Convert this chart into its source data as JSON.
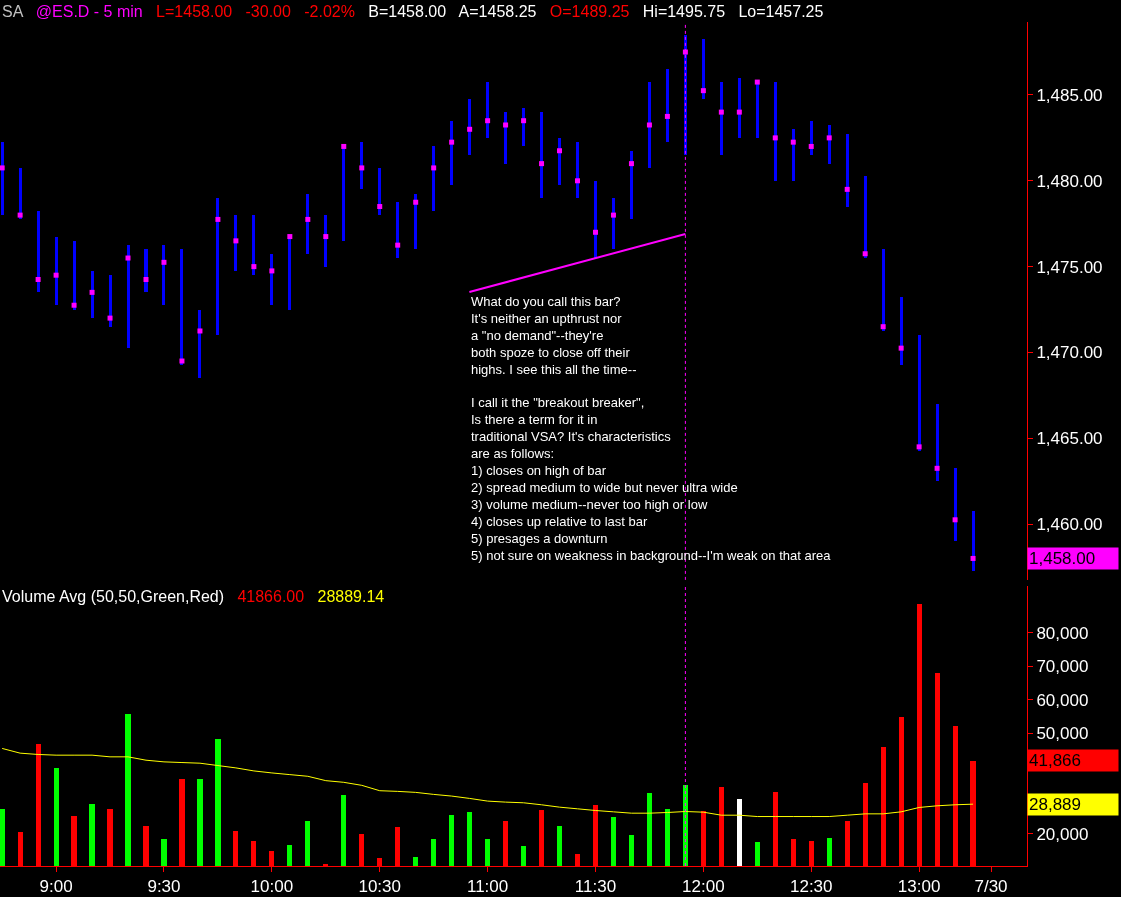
{
  "chart_data": [
    {
      "type": "bar",
      "title": "@ES.D - 5 min",
      "x": [
        8.75,
        8.8333,
        8.9167,
        9,
        9.0833,
        9.1667,
        9.25,
        9.3333,
        9.4167,
        9.5,
        9.5833,
        9.6667,
        9.75,
        9.8333,
        9.9167,
        10,
        10.0833,
        10.1667,
        10.25,
        10.3333,
        10.4167,
        10.5,
        10.5833,
        10.6667,
        10.75,
        10.8333,
        10.9167,
        11,
        11.0833,
        11.1667,
        11.25,
        11.3333,
        11.4167,
        11.5,
        11.5833,
        11.6667,
        11.75,
        11.8333,
        11.9167,
        12,
        12.0833,
        12.1667,
        12.25,
        12.3333,
        12.4167,
        12.5,
        12.5833,
        12.6667,
        12.75,
        12.8333,
        12.9167,
        13,
        13.0833,
        13.1667,
        13.25
      ],
      "series": [
        {
          "color": "#0000ff",
          "base": [
            1478,
            1477.75,
            1473.5,
            1472.75,
            1472.5,
            1472,
            1471.5,
            1470.25,
            1473.5,
            1472.75,
            1469.25,
            1468.5,
            1471,
            1474.75,
            1474.5,
            1472.75,
            1472.5,
            1475.75,
            1475,
            1476.5,
            1479.5,
            1478,
            1475.5,
            1476,
            1478.25,
            1479.75,
            1481.5,
            1482.5,
            1481,
            1482,
            1479,
            1479.75,
            1479,
            1475.5,
            1476,
            1477.75,
            1480.75,
            1482.25,
            1481.5,
            1484.75,
            1481.5,
            1482.5,
            1482.5,
            1480,
            1480,
            1481.5,
            1481,
            1478.5,
            1475.5,
            1471.25,
            1469.25,
            1464.25,
            1462.5,
            1459,
            1457.25
          ],
          "values": [
            4.25,
            3,
            4.75,
            4,
            4,
            2.75,
            3,
            6,
            2.5,
            3.5,
            6.75,
            4,
            8,
            3.25,
            3.5,
            3,
            4.25,
            3.5,
            3,
            5.5,
            2.75,
            2.75,
            3.25,
            3.25,
            3.75,
            3.75,
            3.25,
            3.25,
            3,
            2.25,
            5,
            2.75,
            3.25,
            4.5,
            3,
            4,
            5,
            4.25,
            7,
            3.5,
            4.25,
            3.5,
            3.25,
            5.75,
            3,
            2,
            2.25,
            4.25,
            4.75,
            4.75,
            4,
            6.75,
            4.5,
            4.25,
            3.5
          ]
        },
        {
          "type": "scatter",
          "color": "#ff00ff",
          "marker": "square",
          "values": [
            1480.75,
            1478,
            1474.25,
            1474.5,
            1472.75,
            1473.5,
            1472,
            1475.5,
            1474.25,
            1475.25,
            1469.5,
            1471.25,
            1477.75,
            1476.5,
            1475,
            1474.75,
            1476.75,
            1477.75,
            1476.75,
            1482,
            1480.75,
            1478.5,
            1476.25,
            1478.75,
            1480.75,
            1482.25,
            1483,
            1483.5,
            1483.25,
            1483.5,
            1481,
            1481.75,
            1480,
            1477,
            1478,
            1481,
            1483.25,
            1483.75,
            1487.5,
            1485.25,
            1484,
            1484,
            1485.75,
            1482.5,
            1482.25,
            1482,
            1482.5,
            1479.5,
            1475.75,
            1471.5,
            1470.25,
            1464.5,
            1463.25,
            1460.25,
            1458
          ]
        }
      ],
      "xlim": [
        8.74,
        13.5
      ],
      "ylim": [
        1456.75,
        1489.25
      ],
      "yticks": [
        {
          "value": 1460,
          "label": "1,460.00"
        },
        {
          "value": 1465,
          "label": "1,465.00"
        },
        {
          "value": 1470,
          "label": "1,470.00"
        },
        {
          "value": 1475,
          "label": "1,475.00"
        },
        {
          "value": 1480,
          "label": "1,480.00"
        },
        {
          "value": 1485,
          "label": "1,485.00"
        }
      ],
      "tick_labels": "y",
      "ref_lines": [
        {
          "axis": "x",
          "value": 11.9167,
          "color": "#ff00ff",
          "line_style": "dotted"
        }
      ],
      "annotations": [
        "SA",
        "L=1458.00",
        "-30.00",
        "-2.02%",
        "B=1458.00",
        "A=1458.25",
        "O=1489.25",
        "Hi=1495.75",
        "Lo=1457.25",
        "What do you call this bar?\nIt's neither an upthrust nor\na \"no demand\"--they're\nboth spoze to close off their\nhighs. I see this all the time--\n\nI call it the \"breakout breaker\",\nIs there a term for it in\ntraditional VSA? It's characteristics\nare as follows:\n1) closes on high of bar\n2) spread medium to wide but never ultra wide\n3) volume medium--never too high or low\n4) closes up relative to last bar\n5) presages a downturn\n5) not sure on weakness in background--I'm weak on that area",
        "1,458.00"
      ]
    },
    {
      "type": "bar",
      "title": "Volume Avg (50,50,Green,Red)",
      "x": [
        8.75,
        8.8333,
        8.9167,
        9,
        9.0833,
        9.1667,
        9.25,
        9.3333,
        9.4167,
        9.5,
        9.5833,
        9.6667,
        9.75,
        9.8333,
        9.9167,
        10,
        10.0833,
        10.1667,
        10.25,
        10.3333,
        10.4167,
        10.5,
        10.5833,
        10.6667,
        10.75,
        10.8333,
        10.9167,
        11,
        11.0833,
        11.1667,
        11.25,
        11.3333,
        11.4167,
        11.5,
        11.5833,
        11.6667,
        11.75,
        11.8333,
        11.9167,
        12,
        12.0833,
        12.1667,
        12.25,
        12.3333,
        12.4167,
        12.5,
        12.5833,
        12.6667,
        12.75,
        12.8333,
        12.9167,
        13,
        13.0833,
        13.1667,
        13.25
      ],
      "series": [
        {
          "colors": [
            "#00ff00",
            "#ff0000",
            "#ff0000",
            "#00ff00",
            "#ff0000",
            "#00ff00",
            "#ff0000",
            "#00ff00",
            "#ff0000",
            "#00ff00",
            "#ff0000",
            "#00ff00",
            "#00ff00",
            "#ff0000",
            "#ff0000",
            "#ff0000",
            "#00ff00",
            "#00ff00",
            "#ff0000",
            "#00ff00",
            "#ff0000",
            "#ff0000",
            "#ff0000",
            "#00ff00",
            "#00ff00",
            "#00ff00",
            "#00ff00",
            "#00ff00",
            "#ff0000",
            "#00ff00",
            "#ff0000",
            "#00ff00",
            "#ff0000",
            "#ff0000",
            "#00ff00",
            "#00ff00",
            "#00ff00",
            "#00ff00",
            "#00ff00",
            "#ff0000",
            "#ff0000",
            "#ffffff",
            "#00ff00",
            "#ff0000",
            "#ff0000",
            "#ff0000",
            "#00ff00",
            "#ff0000",
            "#ff0000",
            "#ff0000",
            "#ff0000",
            "#ff0000",
            "#ff0000",
            "#ff0000",
            "#ff0000"
          ],
          "values": [
            27500,
            20700,
            46900,
            39700,
            25500,
            29000,
            27500,
            55800,
            22500,
            18600,
            36400,
            36400,
            48400,
            21000,
            18000,
            15000,
            16800,
            24000,
            11100,
            31800,
            20000,
            12900,
            22100,
            13300,
            18600,
            25800,
            26600,
            18600,
            24000,
            16500,
            27200,
            22300,
            14000,
            28600,
            25000,
            19700,
            32200,
            27400,
            34600,
            26900,
            34000,
            30400,
            17600,
            32500,
            18500,
            17900,
            19000,
            23900,
            35200,
            45900,
            54900,
            88700,
            68000,
            52200,
            41866
          ]
        },
        {
          "type": "line",
          "color": "#ffff00",
          "values": [
            45500,
            44100,
            43700,
            43500,
            43500,
            43500,
            43000,
            43000,
            42000,
            41500,
            41300,
            41100,
            40400,
            39700,
            38800,
            38200,
            37700,
            37200,
            35900,
            35400,
            34500,
            32900,
            32700,
            32400,
            31800,
            31300,
            30600,
            29800,
            29500,
            29300,
            28700,
            28000,
            27500,
            27000,
            26600,
            26200,
            26200,
            26400,
            26700,
            26500,
            25600,
            25600,
            25200,
            25200,
            25200,
            25200,
            25200,
            25600,
            26000,
            26000,
            26600,
            27900,
            28400,
            28700,
            28889
          ]
        }
      ],
      "xlim": [
        8.74,
        13.5
      ],
      "xticks": [
        {
          "value": 9,
          "label": "9:00"
        },
        {
          "value": 9.5,
          "label": "9:30"
        },
        {
          "value": 10,
          "label": "10:00"
        },
        {
          "value": 10.5,
          "label": "10:30"
        },
        {
          "value": 11,
          "label": "11:00"
        },
        {
          "value": 11.5,
          "label": "11:30"
        },
        {
          "value": 12,
          "label": "12:00"
        },
        {
          "value": 12.5,
          "label": "12:30"
        },
        {
          "value": 13,
          "label": "13:00"
        },
        {
          "value": 13.3333,
          "label": "7/30"
        }
      ],
      "ylim": [
        10450,
        94000
      ],
      "yticks": [
        {
          "value": 20000,
          "label": "20,000"
        },
        {
          "value": 50000,
          "label": "50,000"
        },
        {
          "value": 60000,
          "label": "60,000"
        },
        {
          "value": 70000,
          "label": "70,000"
        },
        {
          "value": 80000,
          "label": "80,000"
        }
      ],
      "ref_lines": [
        {
          "axis": "x",
          "value": 11.9167,
          "color": "#ff00ff",
          "line_style": "dotted"
        }
      ],
      "annotations": [
        "41866.00",
        "28889.14",
        "41,866",
        "28,889"
      ]
    }
  ]
}
